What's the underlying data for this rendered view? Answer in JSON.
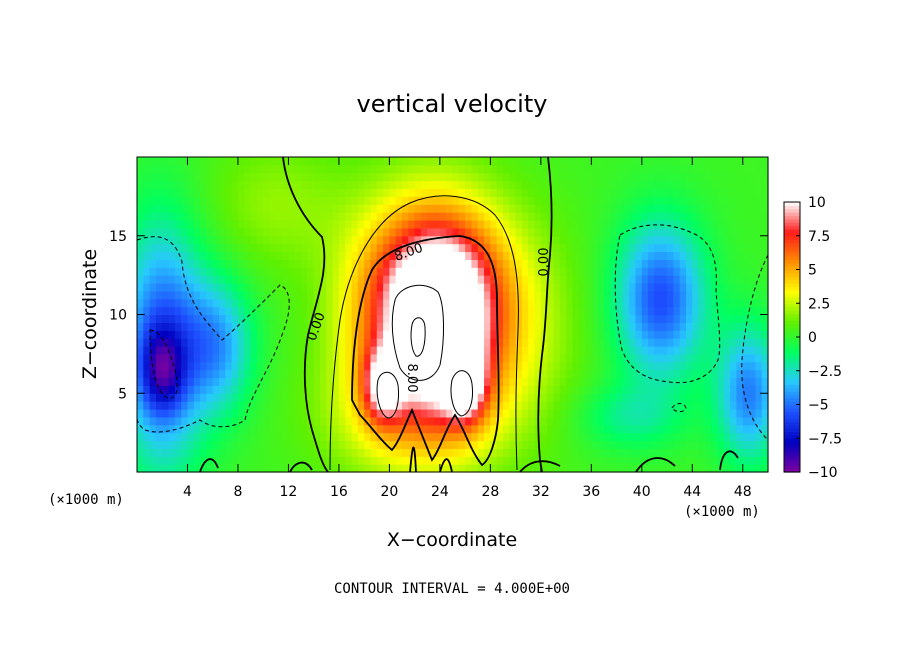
{
  "chart_data": {
    "type": "heatmap",
    "title": "vertical velocity",
    "xlabel": "X−coordinate",
    "ylabel": "Z−coordinate",
    "x_unit_left": "(×1000 m)",
    "x_unit_right": "(×1000 m)",
    "footer": "CONTOUR INTERVAL = 4.000E+00",
    "xlim": [
      0,
      50
    ],
    "ylim": [
      0,
      20
    ],
    "x_ticks": [
      4,
      8,
      12,
      16,
      20,
      24,
      28,
      32,
      36,
      40,
      44,
      48
    ],
    "x_tick_labels": [
      "4",
      "8",
      "12",
      "16",
      "20",
      "24",
      "28",
      "32",
      "36",
      "40",
      "44",
      "48"
    ],
    "y_ticks": [
      5,
      10,
      15
    ],
    "y_tick_labels": [
      "5",
      "10",
      "15"
    ],
    "colorbar": {
      "range": [
        -10,
        10
      ],
      "ticks": [
        10,
        7.5,
        5,
        2.5,
        0,
        -2.5,
        -5,
        -7.5,
        -10
      ],
      "tick_labels": [
        "10",
        "7.5",
        "5",
        "2.5",
        "0",
        "−2.5",
        "−5",
        "−7.5",
        "−10"
      ],
      "colors": [
        "#8000a0",
        "#0000c0",
        "#1e50ff",
        "#28c8ff",
        "#00ff60",
        "#60f000",
        "#ffff00",
        "#ff9000",
        "#ff1a1a",
        "#ffffff"
      ]
    },
    "contour_labels": [
      "8.00",
      "0.00",
      "0.00",
      "8.00"
    ],
    "features": [
      {
        "cx": 23.5,
        "cz": 10.5,
        "sx": 4.2,
        "sz": 4.5,
        "amp": 12
      },
      {
        "cx": 24.0,
        "cz": 9.5,
        "sx": 2.2,
        "sz": 3.2,
        "amp": 6
      },
      {
        "cx": 19.5,
        "cz": 5.5,
        "sx": 1.1,
        "sz": 1.6,
        "amp": 6
      },
      {
        "cx": 26.0,
        "cz": 5.5,
        "sx": 1.1,
        "sz": 1.6,
        "amp": 6
      },
      {
        "cx": 22.0,
        "cz": 3.5,
        "sx": 5.0,
        "sz": 3.0,
        "amp": 3
      },
      {
        "cx": 2.0,
        "cz": 8.0,
        "sx": 2.4,
        "sz": 5.5,
        "amp": -6
      },
      {
        "cx": 2.0,
        "cz": 6.5,
        "sx": 1.2,
        "sz": 1.8,
        "amp": -4
      },
      {
        "cx": 6.5,
        "cz": 8.0,
        "sx": 2.0,
        "sz": 3.0,
        "amp": -4
      },
      {
        "cx": 41.5,
        "cz": 11.0,
        "sx": 2.5,
        "sz": 3.5,
        "amp": -6
      },
      {
        "cx": 48.5,
        "cz": 5.0,
        "sx": 1.8,
        "sz": 3.0,
        "amp": -5
      },
      {
        "cx": 39.0,
        "cz": 3.5,
        "sx": 3.0,
        "sz": 1.5,
        "amp": -2
      },
      {
        "cx": 11.0,
        "cz": 17.0,
        "sx": 4.0,
        "sz": 3.0,
        "amp": 1.5
      },
      {
        "cx": 32.0,
        "cz": 9.0,
        "sx": 3.0,
        "sz": 5.0,
        "amp": 1
      }
    ]
  }
}
